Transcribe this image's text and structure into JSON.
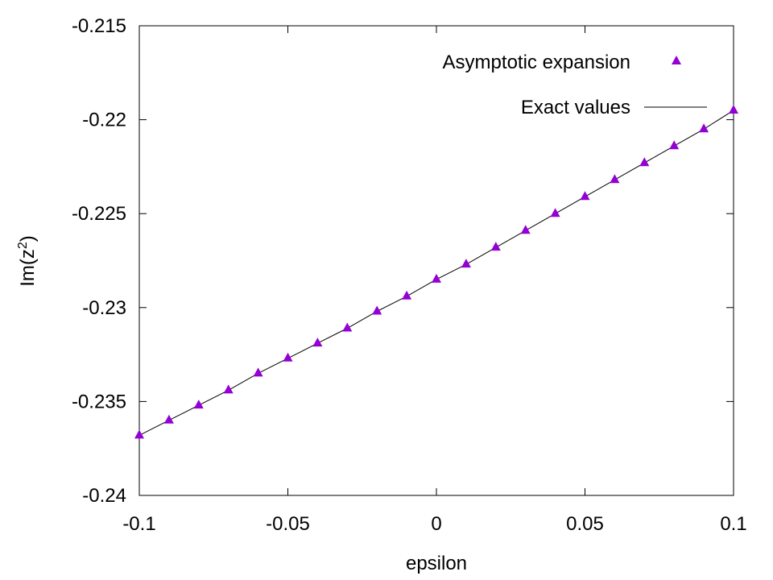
{
  "chart_data": {
    "type": "scatter",
    "xlabel": "epsilon",
    "ylabel_main": "Im(z",
    "ylabel_sup": "2",
    "ylabel_close": ")",
    "xlim": [
      -0.1,
      0.1
    ],
    "ylim": [
      -0.24,
      -0.215
    ],
    "x_ticks": [
      -0.1,
      -0.05,
      0,
      0.05,
      0.1
    ],
    "x_tick_labels": [
      "-0.1",
      "-0.05",
      "0",
      "0.05",
      "0.1"
    ],
    "y_ticks": [
      -0.24,
      -0.235,
      -0.23,
      -0.225,
      -0.22,
      -0.215
    ],
    "y_tick_labels": [
      "-0.24",
      "-0.235",
      "-0.23",
      "-0.225",
      "-0.22",
      "-0.215"
    ],
    "grid": false,
    "legend_position": "top-right",
    "series": [
      {
        "name": "Asymptotic expansion",
        "style": "triangle-markers",
        "color": "#9400d3",
        "x": [
          -0.1,
          -0.09,
          -0.08,
          -0.07,
          -0.06,
          -0.05,
          -0.04,
          -0.03,
          -0.02,
          -0.01,
          0,
          0.01,
          0.02,
          0.03,
          0.04,
          0.05,
          0.06,
          0.07,
          0.08,
          0.09,
          0.1
        ],
        "y": [
          -0.2368,
          -0.236,
          -0.2352,
          -0.2344,
          -0.2335,
          -0.2327,
          -0.2319,
          -0.2311,
          -0.2302,
          -0.2294,
          -0.2285,
          -0.2277,
          -0.2268,
          -0.2259,
          -0.225,
          -0.2241,
          -0.2232,
          -0.2223,
          -0.2214,
          -0.2205,
          -0.2195
        ]
      },
      {
        "name": "Exact values",
        "style": "line",
        "color": "#000000",
        "x": [
          -0.1,
          -0.09,
          -0.08,
          -0.07,
          -0.06,
          -0.05,
          -0.04,
          -0.03,
          -0.02,
          -0.01,
          0,
          0.01,
          0.02,
          0.03,
          0.04,
          0.05,
          0.06,
          0.07,
          0.08,
          0.09,
          0.1
        ],
        "y": [
          -0.2368,
          -0.236,
          -0.2352,
          -0.2344,
          -0.2335,
          -0.2327,
          -0.2319,
          -0.2311,
          -0.2302,
          -0.2294,
          -0.2285,
          -0.2277,
          -0.2268,
          -0.2259,
          -0.225,
          -0.2241,
          -0.2232,
          -0.2223,
          -0.2214,
          -0.2205,
          -0.2195
        ]
      }
    ]
  }
}
